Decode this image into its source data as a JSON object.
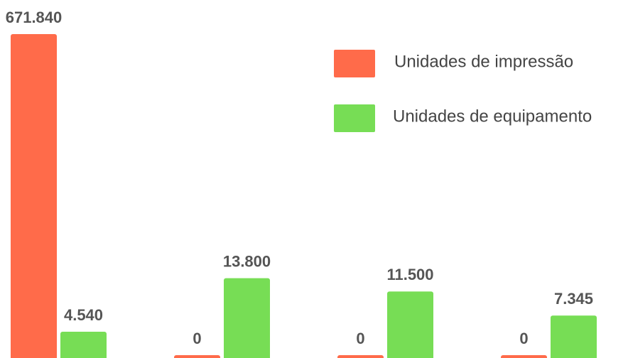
{
  "chart_data": {
    "type": "bar",
    "categories": [
      null,
      null,
      null,
      null
    ],
    "series": [
      {
        "name": "Unidades de impressão",
        "color": "#ff6b4a",
        "values": [
          671840,
          0,
          0,
          0
        ],
        "value_labels": [
          "671.840",
          "0",
          "0",
          "0"
        ]
      },
      {
        "name": "Unidades de equipamento",
        "color": "#77dd55",
        "axis": "y2",
        "values": [
          4540,
          13800,
          11500,
          7345
        ],
        "value_labels": [
          "4.540",
          "13.800",
          "11.500",
          "7.345"
        ]
      }
    ],
    "ylim": [
      0,
      671840
    ],
    "y2lim": [
      0,
      56000
    ],
    "legend": "top-right"
  }
}
